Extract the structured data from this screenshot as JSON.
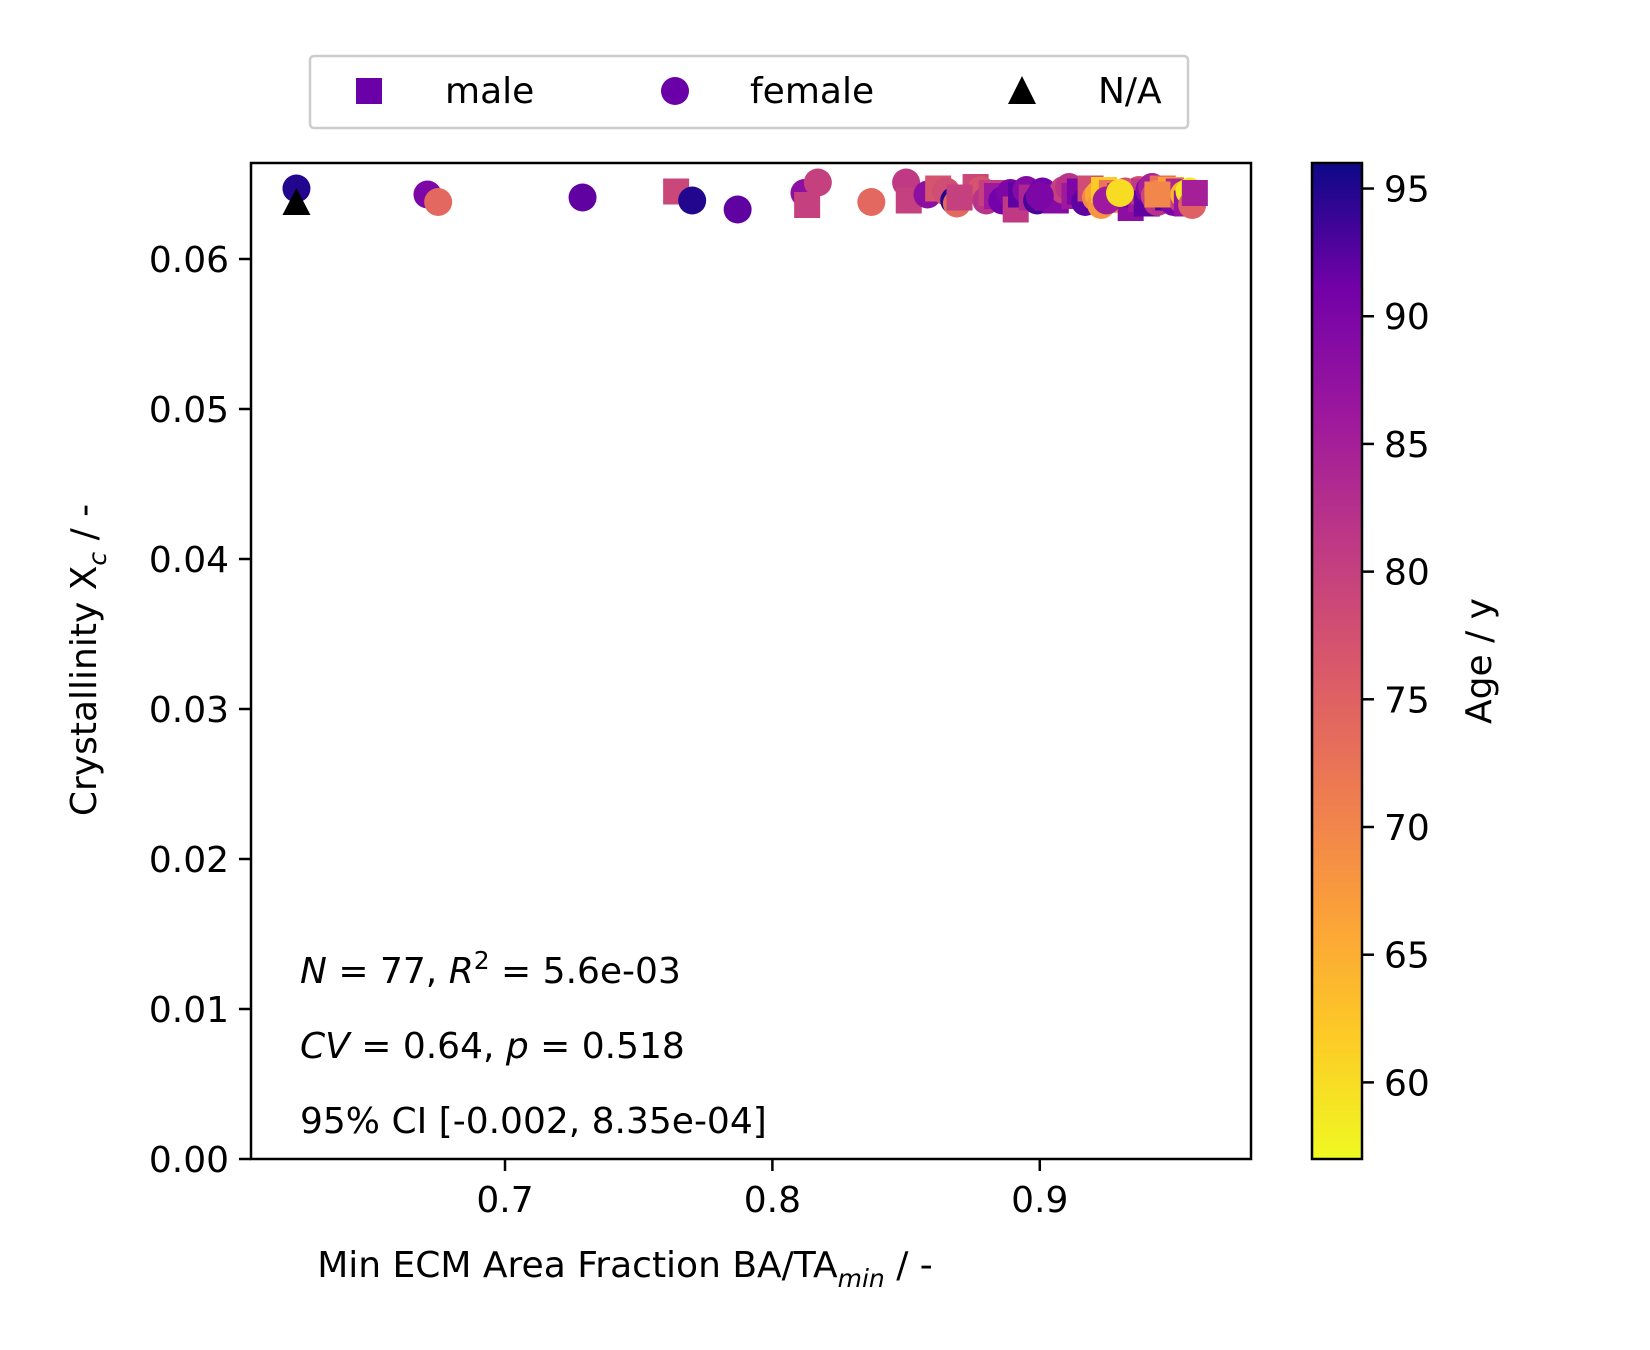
{
  "chart_data": {
    "type": "scatter",
    "xlabel": {
      "main": "Min ECM Area Fraction BA/TA",
      "sub": "min",
      "suffix": " / -"
    },
    "ylabel": {
      "main": "Crystallinity X",
      "sub": "c",
      "suffix": " / -"
    },
    "xlim": [
      0.605,
      0.979
    ],
    "ylim": [
      0.0,
      0.0664
    ],
    "xticks": [
      0.7,
      0.8,
      0.9
    ],
    "xtick_labels": [
      "0.7",
      "0.8",
      "0.9"
    ],
    "yticks": [
      0.0,
      0.01,
      0.02,
      0.03,
      0.04,
      0.05,
      0.06
    ],
    "ytick_labels": [
      "0.00",
      "0.01",
      "0.02",
      "0.03",
      "0.04",
      "0.05",
      "0.06"
    ],
    "grid": false,
    "legend": {
      "placement": "top-center-outside",
      "entries": [
        {
          "label": "male",
          "marker": "square",
          "color": "#6a00a8"
        },
        {
          "label": "female",
          "marker": "circle",
          "color": "#6a00a8"
        },
        {
          "label": "N/A",
          "marker": "triangle",
          "color": "#000000"
        }
      ]
    },
    "colorbar": {
      "label": "Age / y",
      "range": [
        57,
        96
      ],
      "ticks": [
        60,
        65,
        70,
        75,
        80,
        85,
        90,
        95
      ],
      "tick_labels": [
        "60",
        "65",
        "70",
        "75",
        "80",
        "85",
        "90",
        "95"
      ],
      "colormap": "plasma"
    },
    "annotations": {
      "line1": {
        "N_label": "N",
        "N_value": " = 77, ",
        "R_label": "R",
        "R_sup": "2",
        "R_value": " = 5.6e-03"
      },
      "line2": {
        "CV_label": "CV",
        "CV_value": " = 0.64, ",
        "p_label": "p",
        "p_value": " = 0.518"
      },
      "line3": "95% CI [-0.002,  8.35e-04]"
    },
    "points": [
      {
        "x": 0.622,
        "y": 0.0647,
        "age": 95,
        "marker": "circle"
      },
      {
        "x": 0.622,
        "y": 0.0638,
        "age": null,
        "marker": "triangle"
      },
      {
        "x": 0.671,
        "y": 0.0643,
        "age": 90,
        "marker": "circle"
      },
      {
        "x": 0.675,
        "y": 0.0638,
        "age": 74,
        "marker": "circle"
      },
      {
        "x": 0.729,
        "y": 0.0641,
        "age": 92,
        "marker": "circle"
      },
      {
        "x": 0.764,
        "y": 0.0645,
        "age": 79,
        "marker": "square"
      },
      {
        "x": 0.77,
        "y": 0.0639,
        "age": 95,
        "marker": "circle"
      },
      {
        "x": 0.787,
        "y": 0.0633,
        "age": 92,
        "marker": "circle"
      },
      {
        "x": 0.812,
        "y": 0.0644,
        "age": 88,
        "marker": "circle"
      },
      {
        "x": 0.813,
        "y": 0.0636,
        "age": 80,
        "marker": "square"
      },
      {
        "x": 0.817,
        "y": 0.0651,
        "age": 80,
        "marker": "circle"
      },
      {
        "x": 0.837,
        "y": 0.0638,
        "age": 74,
        "marker": "circle"
      },
      {
        "x": 0.85,
        "y": 0.0651,
        "age": 81,
        "marker": "circle"
      },
      {
        "x": 0.851,
        "y": 0.0639,
        "age": 80,
        "marker": "square"
      },
      {
        "x": 0.858,
        "y": 0.0643,
        "age": 88,
        "marker": "circle"
      },
      {
        "x": 0.862,
        "y": 0.0647,
        "age": 77,
        "marker": "square"
      },
      {
        "x": 0.865,
        "y": 0.0645,
        "age": 78,
        "marker": "circle"
      },
      {
        "x": 0.868,
        "y": 0.0639,
        "age": 95,
        "marker": "circle"
      },
      {
        "x": 0.869,
        "y": 0.0637,
        "age": 74,
        "marker": "circle"
      },
      {
        "x": 0.876,
        "y": 0.0648,
        "age": 79,
        "marker": "square"
      },
      {
        "x": 0.878,
        "y": 0.0646,
        "age": 77,
        "marker": "circle"
      },
      {
        "x": 0.88,
        "y": 0.0639,
        "age": 82,
        "marker": "circle"
      },
      {
        "x": 0.882,
        "y": 0.0644,
        "age": 80,
        "marker": "square"
      },
      {
        "x": 0.884,
        "y": 0.0642,
        "age": 86,
        "marker": "square"
      },
      {
        "x": 0.886,
        "y": 0.0639,
        "age": 91,
        "marker": "circle"
      },
      {
        "x": 0.889,
        "y": 0.0644,
        "age": 90,
        "marker": "circle"
      },
      {
        "x": 0.891,
        "y": 0.0633,
        "age": 81,
        "marker": "square"
      },
      {
        "x": 0.893,
        "y": 0.0643,
        "age": 92,
        "marker": "square"
      },
      {
        "x": 0.895,
        "y": 0.0646,
        "age": 89,
        "marker": "circle"
      },
      {
        "x": 0.897,
        "y": 0.0641,
        "age": 84,
        "marker": "square"
      },
      {
        "x": 0.899,
        "y": 0.0639,
        "age": 93,
        "marker": "circle"
      },
      {
        "x": 0.901,
        "y": 0.0645,
        "age": 91,
        "marker": "circle"
      },
      {
        "x": 0.903,
        "y": 0.0641,
        "age": 88,
        "marker": "square"
      },
      {
        "x": 0.906,
        "y": 0.0639,
        "age": 89,
        "marker": "square"
      },
      {
        "x": 0.909,
        "y": 0.0646,
        "age": 80,
        "marker": "circle"
      },
      {
        "x": 0.911,
        "y": 0.0648,
        "age": 82,
        "marker": "circle"
      },
      {
        "x": 0.913,
        "y": 0.0642,
        "age": 86,
        "marker": "square"
      },
      {
        "x": 0.915,
        "y": 0.0645,
        "age": 90,
        "marker": "square"
      },
      {
        "x": 0.917,
        "y": 0.0638,
        "age": 92,
        "marker": "circle"
      },
      {
        "x": 0.919,
        "y": 0.0647,
        "age": 78,
        "marker": "square"
      },
      {
        "x": 0.921,
        "y": 0.0641,
        "age": 70,
        "marker": "circle"
      },
      {
        "x": 0.922,
        "y": 0.0643,
        "age": 66,
        "marker": "circle"
      },
      {
        "x": 0.923,
        "y": 0.0636,
        "age": 68,
        "marker": "circle"
      },
      {
        "x": 0.924,
        "y": 0.0646,
        "age": 62,
        "marker": "square"
      },
      {
        "x": 0.926,
        "y": 0.0641,
        "age": 65,
        "marker": "circle"
      },
      {
        "x": 0.927,
        "y": 0.0644,
        "age": 72,
        "marker": "square"
      },
      {
        "x": 0.928,
        "y": 0.064,
        "age": 69,
        "marker": "circle"
      },
      {
        "x": 0.93,
        "y": 0.0642,
        "age": 82,
        "marker": "square"
      },
      {
        "x": 0.932,
        "y": 0.0645,
        "age": 78,
        "marker": "circle"
      },
      {
        "x": 0.934,
        "y": 0.0634,
        "age": 88,
        "marker": "square"
      },
      {
        "x": 0.936,
        "y": 0.0643,
        "age": 91,
        "marker": "square"
      },
      {
        "x": 0.937,
        "y": 0.0646,
        "age": 77,
        "marker": "circle"
      },
      {
        "x": 0.938,
        "y": 0.064,
        "age": 86,
        "marker": "square"
      },
      {
        "x": 0.939,
        "y": 0.0645,
        "age": 81,
        "marker": "square"
      },
      {
        "x": 0.94,
        "y": 0.0637,
        "age": 92,
        "marker": "square"
      },
      {
        "x": 0.941,
        "y": 0.0646,
        "age": 89,
        "marker": "circle"
      },
      {
        "x": 0.942,
        "y": 0.0648,
        "age": 85,
        "marker": "circle"
      },
      {
        "x": 0.943,
        "y": 0.0642,
        "age": 79,
        "marker": "circle"
      },
      {
        "x": 0.944,
        "y": 0.0638,
        "age": 82,
        "marker": "circle"
      },
      {
        "x": 0.946,
        "y": 0.0647,
        "age": 73,
        "marker": "square"
      },
      {
        "x": 0.947,
        "y": 0.0644,
        "age": 71,
        "marker": "square"
      },
      {
        "x": 0.948,
        "y": 0.0641,
        "age": 93,
        "marker": "square"
      },
      {
        "x": 0.949,
        "y": 0.0646,
        "age": 67,
        "marker": "square"
      },
      {
        "x": 0.95,
        "y": 0.0638,
        "age": 90,
        "marker": "circle"
      },
      {
        "x": 0.951,
        "y": 0.0643,
        "age": 77,
        "marker": "square"
      },
      {
        "x": 0.952,
        "y": 0.0645,
        "age": 84,
        "marker": "square"
      },
      {
        "x": 0.953,
        "y": 0.064,
        "age": 80,
        "marker": "circle"
      },
      {
        "x": 0.954,
        "y": 0.0643,
        "age": 64,
        "marker": "circle"
      },
      {
        "x": 0.955,
        "y": 0.0637,
        "age": 87,
        "marker": "square"
      },
      {
        "x": 0.956,
        "y": 0.0645,
        "age": 59,
        "marker": "circle"
      },
      {
        "x": 0.957,
        "y": 0.0636,
        "age": 75,
        "marker": "circle"
      },
      {
        "x": 0.958,
        "y": 0.0644,
        "age": 85,
        "marker": "square"
      },
      {
        "x": 0.9,
        "y": 0.0642,
        "age": 90,
        "marker": "circle"
      },
      {
        "x": 0.87,
        "y": 0.0641,
        "age": 80,
        "marker": "square"
      },
      {
        "x": 0.925,
        "y": 0.0639,
        "age": 86,
        "marker": "circle"
      },
      {
        "x": 0.93,
        "y": 0.0644,
        "age": 60,
        "marker": "circle"
      },
      {
        "x": 0.944,
        "y": 0.0643,
        "age": 70,
        "marker": "square"
      }
    ]
  }
}
